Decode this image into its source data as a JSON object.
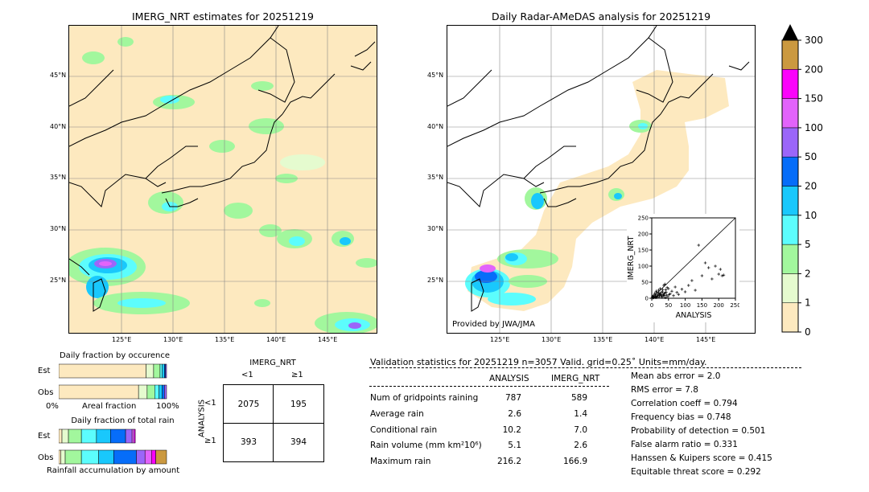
{
  "left_title": "IMERG_NRT estimates for 20251219",
  "right_title": "Daily Radar-AMeDAS analysis for 20251219",
  "lat_labels": [
    "45°N",
    "40°N",
    "35°N",
    "30°N",
    "25°N"
  ],
  "lon_labels": [
    "125°E",
    "130°E",
    "135°E",
    "140°E",
    "145°E"
  ],
  "provided_by": "Provided by JWA/JMA",
  "colorbar": {
    "labels": [
      "0",
      "1",
      "2",
      "5",
      "10",
      "20",
      "50",
      "100",
      "150",
      "200",
      "300"
    ],
    "colors": [
      "#fde9bf",
      "#e5fbcf",
      "#a2f79d",
      "#5cfdfd",
      "#19c8fc",
      "#066df9",
      "#9b66f9",
      "#e263fb",
      "#fb03fb",
      "#cb9940"
    ],
    "over_color": "#000000"
  },
  "scatter": {
    "xlabel": "ANALYSIS",
    "ylabel": "IMERG_NRT",
    "ticks": [
      "0",
      "50",
      "100",
      "150",
      "200",
      "250"
    ],
    "xlim": [
      0,
      250
    ],
    "ylim": [
      0,
      250
    ]
  },
  "chart_data": {
    "type": "scatter",
    "xlabel": "ANALYSIS",
    "ylabel": "IMERG_NRT",
    "xlim": [
      0,
      250
    ],
    "ylim": [
      0,
      250
    ],
    "points": [
      [
        2,
        3
      ],
      [
        4,
        1
      ],
      [
        5,
        8
      ],
      [
        8,
        4
      ],
      [
        10,
        12
      ],
      [
        12,
        2
      ],
      [
        14,
        6
      ],
      [
        15,
        18
      ],
      [
        18,
        9
      ],
      [
        20,
        25
      ],
      [
        22,
        4
      ],
      [
        24,
        14
      ],
      [
        25,
        30
      ],
      [
        28,
        10
      ],
      [
        30,
        6
      ],
      [
        32,
        20
      ],
      [
        34,
        12
      ],
      [
        36,
        40
      ],
      [
        38,
        8
      ],
      [
        40,
        16
      ],
      [
        42,
        26
      ],
      [
        45,
        10
      ],
      [
        48,
        5
      ],
      [
        50,
        30
      ],
      [
        55,
        14
      ],
      [
        60,
        22
      ],
      [
        65,
        8
      ],
      [
        70,
        35
      ],
      [
        75,
        18
      ],
      [
        80,
        12
      ],
      [
        90,
        28
      ],
      [
        100,
        20
      ],
      [
        110,
        40
      ],
      [
        120,
        55
      ],
      [
        130,
        25
      ],
      [
        140,
        165
      ],
      [
        150,
        70
      ],
      [
        160,
        110
      ],
      [
        170,
        95
      ],
      [
        180,
        60
      ],
      [
        190,
        100
      ],
      [
        200,
        75
      ],
      [
        205,
        90
      ],
      [
        210,
        70
      ],
      [
        215,
        72
      ],
      [
        3,
        6
      ],
      [
        6,
        2
      ],
      [
        9,
        15
      ],
      [
        11,
        7
      ],
      [
        13,
        22
      ],
      [
        16,
        3
      ],
      [
        19,
        11
      ],
      [
        21,
        17
      ],
      [
        23,
        8
      ],
      [
        26,
        13
      ],
      [
        29,
        19
      ],
      [
        31,
        3
      ],
      [
        33,
        27
      ],
      [
        35,
        9
      ],
      [
        37,
        15
      ],
      [
        39,
        44
      ],
      [
        41,
        2
      ],
      [
        43,
        19
      ],
      [
        46,
        33
      ],
      [
        52,
        11
      ]
    ]
  },
  "fraction_occurrence": {
    "title": "Daily fraction by occurence",
    "est_label": "Est",
    "obs_label": "Obs",
    "xlabel_left": "0%",
    "xlabel_mid": "Areal fraction",
    "xlabel_right": "100%",
    "est_fractions": [
      0.81,
      0.07,
      0.06,
      0.02,
      0.02,
      0.01,
      0.01
    ],
    "obs_fractions": [
      0.74,
      0.08,
      0.07,
      0.04,
      0.03,
      0.02,
      0.02
    ]
  },
  "fraction_total": {
    "title": "Daily fraction of total rain",
    "est_label": "Est",
    "obs_label": "Obs",
    "footer": "Rainfall accumulation by amount",
    "est_fractions": [
      0.03,
      0.06,
      0.12,
      0.14,
      0.13,
      0.14,
      0.06,
      0.02,
      0.01
    ],
    "obs_fractions": [
      0.02,
      0.04,
      0.15,
      0.16,
      0.14,
      0.21,
      0.08,
      0.06,
      0.04,
      0.1
    ]
  },
  "contingency": {
    "title": "IMERG_NRT",
    "col_lt": "<1",
    "col_ge": "≥1",
    "row_title": "ANALYSIS",
    "row_lt": "<1",
    "row_ge": "≥1",
    "cells": [
      "2075",
      "195",
      "393",
      "394"
    ]
  },
  "validation": {
    "header": "Validation statistics for 20251219  n=3057 Valid. grid=0.25˚ Units=mm/day.",
    "col_analysis": "ANALYSIS",
    "col_imerg": "IMERG_NRT",
    "rows": [
      {
        "label": "Num of gridpoints raining",
        "a": "787",
        "b": "589"
      },
      {
        "label": "Average rain",
        "a": "2.6",
        "b": "1.4"
      },
      {
        "label": "Conditional rain",
        "a": "10.2",
        "b": "7.0"
      },
      {
        "label": "Rain volume (mm km²10⁶)",
        "a": "5.1",
        "b": "2.6"
      },
      {
        "label": "Maximum rain",
        "a": "216.2",
        "b": "166.9"
      }
    ],
    "scores": [
      "Mean abs error =    2.0",
      "RMS error =    7.8",
      "Correlation coeff =  0.794",
      "Frequency bias =  0.748",
      "Probability of detection =  0.501",
      "False alarm ratio =  0.331",
      "Hanssen & Kuipers score =  0.415",
      "Equitable threat score =  0.292"
    ]
  }
}
